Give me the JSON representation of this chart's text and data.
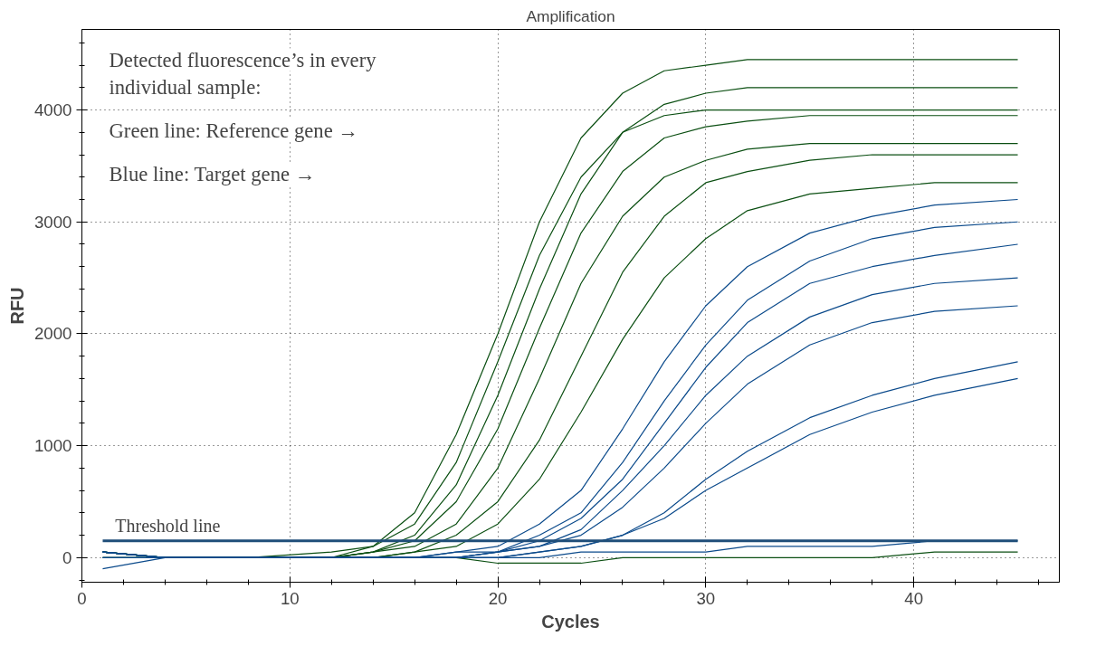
{
  "chart_data": {
    "type": "line",
    "title": "Amplification",
    "xlabel": "Cycles",
    "ylabel": "RFU",
    "x": [
      1,
      4,
      8,
      12,
      14,
      16,
      18,
      20,
      22,
      24,
      26,
      28,
      30,
      32,
      35,
      38,
      41,
      45
    ],
    "xlim": [
      0,
      47
    ],
    "ylim": [
      -220,
      4720
    ],
    "xticks": [
      0,
      10,
      20,
      30,
      40
    ],
    "yticks": [
      0,
      1000,
      2000,
      3000,
      4000
    ],
    "grid": true,
    "line_style": "solid",
    "marker": "none",
    "annotations": [
      "Detected fluorescence’s in every individual sample:",
      "Green line: Reference gene →",
      "Blue line: Target gene →"
    ],
    "ref_lines": [
      {
        "axis": "y",
        "value": 150,
        "label": "Threshold line",
        "color": "#1f4e79"
      }
    ],
    "series": [
      {
        "color": "#0b4f12",
        "values": [
          50,
          0,
          0,
          50,
          100,
          400,
          1100,
          2000,
          3000,
          3750,
          4150,
          4350,
          4400,
          4450,
          4450,
          4450,
          4450,
          4450
        ]
      },
      {
        "color": "#0b4f12",
        "values": [
          50,
          0,
          0,
          0,
          50,
          200,
          650,
          1450,
          2400,
          3250,
          3800,
          4050,
          4150,
          4200,
          4200,
          4200,
          4200,
          4200
        ]
      },
      {
        "color": "#0b4f12",
        "values": [
          50,
          0,
          0,
          0,
          50,
          150,
          500,
          1150,
          2050,
          2900,
          3450,
          3750,
          3850,
          3900,
          3950,
          3950,
          3950,
          3950
        ]
      },
      {
        "color": "#0b4f12",
        "values": [
          50,
          0,
          0,
          0,
          50,
          100,
          300,
          800,
          1600,
          2450,
          3050,
          3400,
          3550,
          3650,
          3700,
          3700,
          3700,
          3700
        ]
      },
      {
        "color": "#0b4f12",
        "values": [
          0,
          0,
          0,
          0,
          0,
          50,
          200,
          500,
          1050,
          1800,
          2550,
          3050,
          3350,
          3450,
          3550,
          3600,
          3600,
          3600
        ]
      },
      {
        "color": "#0b4f12",
        "values": [
          0,
          0,
          0,
          0,
          0,
          50,
          100,
          300,
          700,
          1300,
          1950,
          2500,
          2850,
          3100,
          3250,
          3300,
          3350,
          3350
        ]
      },
      {
        "color": "#0b4f12",
        "values": [
          50,
          0,
          0,
          0,
          100,
          300,
          850,
          1750,
          2700,
          3400,
          3800,
          3950,
          4000,
          4000,
          4000,
          4000,
          4000,
          4000
        ]
      },
      {
        "color": "#0b4f12",
        "values": [
          50,
          0,
          0,
          0,
          0,
          0,
          0,
          -50,
          -50,
          -50,
          0,
          0,
          0,
          0,
          0,
          0,
          50,
          50
        ]
      },
      {
        "color": "#0b4a8b",
        "values": [
          50,
          0,
          0,
          0,
          0,
          0,
          50,
          100,
          300,
          600,
          1150,
          1750,
          2250,
          2600,
          2900,
          3050,
          3150,
          3200
        ]
      },
      {
        "color": "#0b4a8b",
        "values": [
          50,
          0,
          0,
          0,
          0,
          0,
          50,
          50,
          200,
          400,
          850,
          1400,
          1900,
          2300,
          2650,
          2850,
          2950,
          3000
        ]
      },
      {
        "color": "#0b4a8b",
        "values": [
          50,
          0,
          0,
          0,
          0,
          0,
          0,
          50,
          150,
          350,
          700,
          1200,
          1700,
          2100,
          2450,
          2600,
          2700,
          2800
        ]
      },
      {
        "color": "#0b4a8b",
        "values": [
          50,
          0,
          0,
          0,
          0,
          0,
          0,
          50,
          100,
          250,
          600,
          1000,
          1450,
          1800,
          2150,
          2350,
          2450,
          2500
        ]
      },
      {
        "color": "#0b4a8b",
        "values": [
          0,
          0,
          0,
          0,
          0,
          0,
          0,
          50,
          100,
          200,
          450,
          800,
          1200,
          1550,
          1900,
          2100,
          2200,
          2250
        ]
      },
      {
        "color": "#0b4a8b",
        "values": [
          0,
          0,
          0,
          0,
          0,
          0,
          0,
          0,
          50,
          100,
          200,
          400,
          700,
          950,
          1250,
          1450,
          1600,
          1750
        ]
      },
      {
        "color": "#0b4a8b",
        "values": [
          -100,
          0,
          0,
          0,
          0,
          0,
          0,
          0,
          50,
          100,
          200,
          350,
          600,
          800,
          1100,
          1300,
          1450,
          1600
        ]
      },
      {
        "color": "#0b4a8b",
        "values": [
          50,
          0,
          0,
          0,
          0,
          0,
          0,
          0,
          0,
          50,
          50,
          50,
          50,
          100,
          100,
          100,
          150,
          150
        ]
      }
    ]
  }
}
